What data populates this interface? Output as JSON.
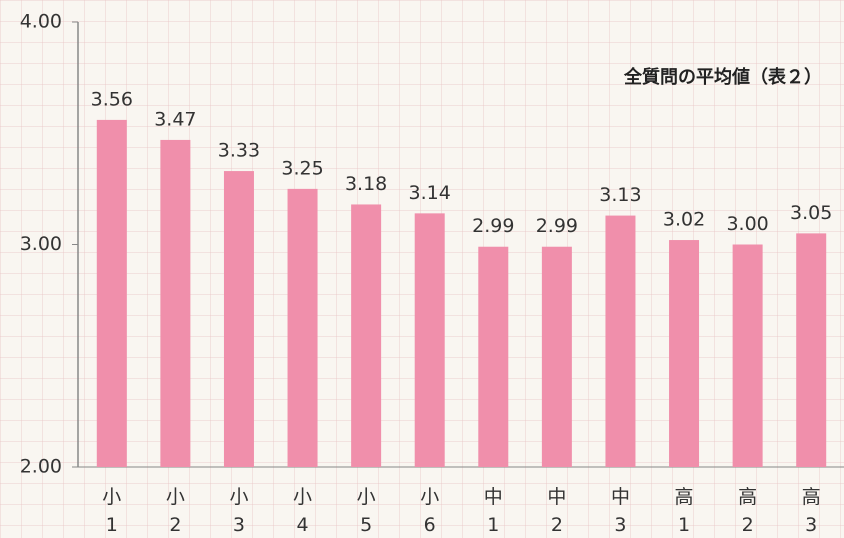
{
  "chart_data": {
    "type": "bar",
    "title": "全質問の平均値（表２）",
    "categories": [
      [
        "小",
        "1"
      ],
      [
        "小",
        "2"
      ],
      [
        "小",
        "3"
      ],
      [
        "小",
        "4"
      ],
      [
        "小",
        "5"
      ],
      [
        "小",
        "6"
      ],
      [
        "中",
        "1"
      ],
      [
        "中",
        "2"
      ],
      [
        "中",
        "3"
      ],
      [
        "高",
        "1"
      ],
      [
        "高",
        "2"
      ],
      [
        "高",
        "3"
      ]
    ],
    "values": [
      3.56,
      3.47,
      3.33,
      3.25,
      3.18,
      3.14,
      2.99,
      2.99,
      3.13,
      3.02,
      3.0,
      3.05
    ],
    "value_labels": [
      "3.56",
      "3.47",
      "3.33",
      "3.25",
      "3.18",
      "3.14",
      "2.99",
      "2.99",
      "3.13",
      "3.02",
      "3.00",
      "3.05"
    ],
    "color": "#f08fab",
    "ylim": [
      2,
      4
    ],
    "yticks": [
      {
        "value": 2,
        "label": "2.00"
      },
      {
        "value": 3,
        "label": "3.00"
      },
      {
        "value": 4,
        "label": "4.00"
      }
    ]
  }
}
